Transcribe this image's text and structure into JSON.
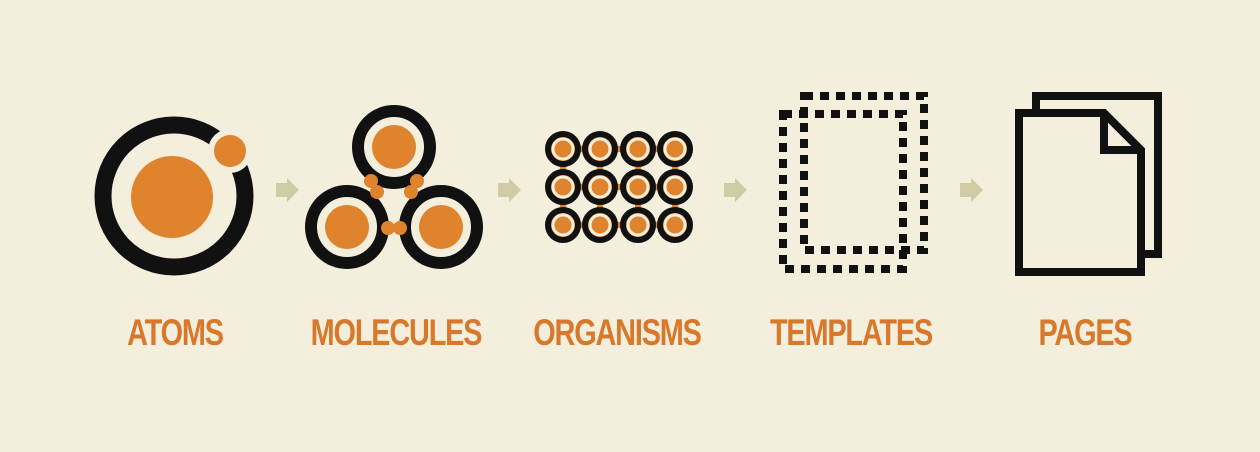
{
  "colors": {
    "background": "#f3efdc",
    "accent": "#e0832d",
    "ink": "#111111",
    "label": "#d9782a",
    "arrow": "#cfcba4"
  },
  "stages": [
    {
      "id": "atoms",
      "label": "ATOMS",
      "icon": "atom-icon"
    },
    {
      "id": "molecules",
      "label": "MOLECULES",
      "icon": "molecule-icon"
    },
    {
      "id": "organisms",
      "label": "ORGANISMS",
      "icon": "organism-icon"
    },
    {
      "id": "templates",
      "label": "TEMPLATES",
      "icon": "template-icon"
    },
    {
      "id": "pages",
      "label": "PAGES",
      "icon": "pages-icon"
    }
  ]
}
